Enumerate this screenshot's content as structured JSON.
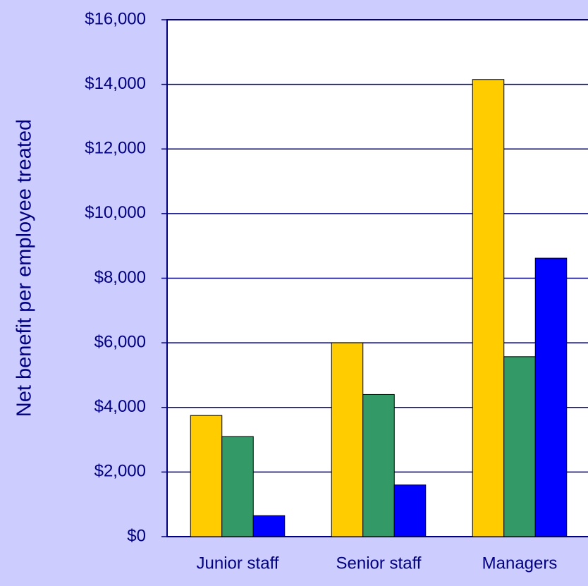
{
  "chart_data": {
    "type": "bar",
    "y_label": "Net benefit per employee treated",
    "categories": [
      "Junior staff",
      "Senior staff",
      "Managers"
    ],
    "series": [
      {
        "color": "#ffcc00",
        "values": [
          3750,
          6000,
          14150
        ]
      },
      {
        "color": "#339966",
        "values": [
          3100,
          4400,
          5570
        ]
      },
      {
        "color": "#0000ff",
        "values": [
          650,
          1600,
          8620
        ]
      }
    ],
    "ylim": [
      0,
      16000
    ],
    "yticks": [
      {
        "value": 0,
        "label": "$0"
      },
      {
        "value": 2000,
        "label": "$2,000"
      },
      {
        "value": 4000,
        "label": "$4,000"
      },
      {
        "value": 6000,
        "label": "$6,000"
      },
      {
        "value": 8000,
        "label": "$8,000"
      },
      {
        "value": 10000,
        "label": "$10,000"
      },
      {
        "value": 12000,
        "label": "$12,000"
      },
      {
        "value": 14000,
        "label": "$14,000"
      },
      {
        "value": 16000,
        "label": "$16,000"
      }
    ],
    "grid": true
  }
}
